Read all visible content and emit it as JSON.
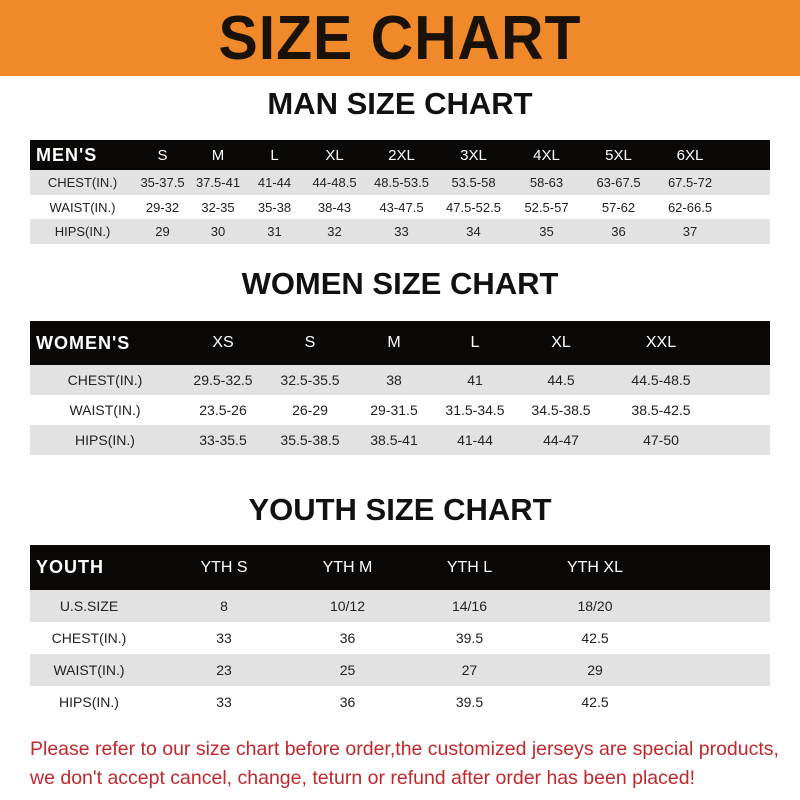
{
  "banner": "SIZE CHART",
  "men": {
    "title": "MAN SIZE CHART",
    "header": [
      "MEN'S",
      "S",
      "M",
      "L",
      "XL",
      "2XL",
      "3XL",
      "4XL",
      "5XL",
      "6XL"
    ],
    "rows": [
      [
        "CHEST(IN.)",
        "35-37.5",
        "37.5-41",
        "41-44",
        "44-48.5",
        "48.5-53.5",
        "53.5-58",
        "58-63",
        "63-67.5",
        "67.5-72"
      ],
      [
        "WAIST(IN.)",
        "29-32",
        "32-35",
        "35-38",
        "38-43",
        "43-47.5",
        "47.5-52.5",
        "52.5-57",
        "57-62",
        "62-66.5"
      ],
      [
        "HIPS(IN.)",
        "29",
        "30",
        "31",
        "32",
        "33",
        "34",
        "35",
        "36",
        "37"
      ]
    ]
  },
  "women": {
    "title": "WOMEN SIZE CHART",
    "header": [
      "WOMEN'S",
      "XS",
      "S",
      "M",
      "L",
      "XL",
      "XXL"
    ],
    "rows": [
      [
        "CHEST(IN.)",
        "29.5-32.5",
        "32.5-35.5",
        "38",
        "41",
        "44.5",
        "44.5-48.5"
      ],
      [
        "WAIST(IN.)",
        "23.5-26",
        "26-29",
        "29-31.5",
        "31.5-34.5",
        "34.5-38.5",
        "38.5-42.5"
      ],
      [
        "HIPS(IN.)",
        "33-35.5",
        "35.5-38.5",
        "38.5-41",
        "41-44",
        "44-47",
        "47-50"
      ]
    ]
  },
  "youth": {
    "title": "YOUTH SIZE CHART",
    "header": [
      "YOUTH",
      "YTH S",
      "YTH M",
      "YTH L",
      "YTH XL"
    ],
    "rows": [
      [
        "U.S.SIZE",
        "8",
        "10/12",
        "14/16",
        "18/20"
      ],
      [
        "CHEST(IN.)",
        "33",
        "36",
        "39.5",
        "42.5"
      ],
      [
        "WAIST(IN.)",
        "23",
        "25",
        "27",
        "29"
      ],
      [
        "HIPS(IN.)",
        "33",
        "36",
        "39.5",
        "42.5"
      ]
    ]
  },
  "footer": {
    "line1": "Please refer to our size chart before order,the customized jerseys are special products,",
    "line2": "we don't accept cancel, change, teturn or refund after order has been placed!"
  },
  "colors": {
    "banner": "#f0892a",
    "header_row": "#0b0808",
    "stripe": "#e2e2e2",
    "notice": "#c0282d"
  }
}
